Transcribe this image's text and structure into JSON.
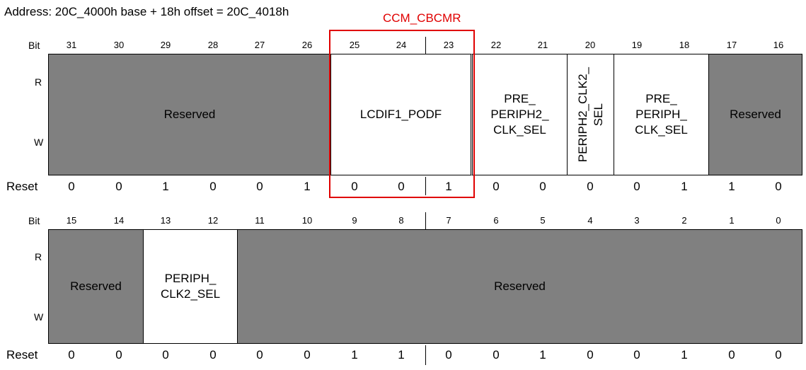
{
  "address": "Address: 20C_4000h base + 18h offset = 20C_4018h",
  "highlight_label": "CCM_CBCMR",
  "labels": {
    "bit": "Bit",
    "r": "R",
    "w": "W",
    "reset": "Reset"
  },
  "upper": {
    "bits": [
      "31",
      "30",
      "29",
      "28",
      "27",
      "26",
      "25",
      "24",
      "23",
      "22",
      "21",
      "20",
      "19",
      "18",
      "17",
      "16"
    ],
    "reset": [
      "0",
      "0",
      "1",
      "0",
      "0",
      "1",
      "0",
      "0",
      "1",
      "0",
      "0",
      "0",
      "0",
      "1",
      "1",
      "0"
    ],
    "fields": [
      {
        "label": "Reserved",
        "type": "reserved"
      },
      {
        "label": "LCDIF1_PODF",
        "type": "field"
      },
      {
        "label": "PRE_\nPERIPH2_\nCLK_SEL",
        "type": "field"
      },
      {
        "label": "PERIPH2_CLK2_\nSEL",
        "type": "field",
        "vertical": true
      },
      {
        "label": "PRE_\nPERIPH_\nCLK_SEL",
        "type": "field"
      },
      {
        "label": "Reserved",
        "type": "reserved"
      }
    ]
  },
  "lower": {
    "bits": [
      "15",
      "14",
      "13",
      "12",
      "11",
      "10",
      "9",
      "8",
      "7",
      "6",
      "5",
      "4",
      "3",
      "2",
      "1",
      "0"
    ],
    "reset": [
      "0",
      "0",
      "0",
      "0",
      "0",
      "0",
      "1",
      "1",
      "0",
      "0",
      "1",
      "0",
      "0",
      "1",
      "0",
      "0"
    ],
    "fields": [
      {
        "label": "Reserved",
        "type": "reserved"
      },
      {
        "label": "PERIPH_\nCLK2_SEL",
        "type": "field"
      },
      {
        "label": "Reserved",
        "type": "reserved"
      }
    ]
  }
}
